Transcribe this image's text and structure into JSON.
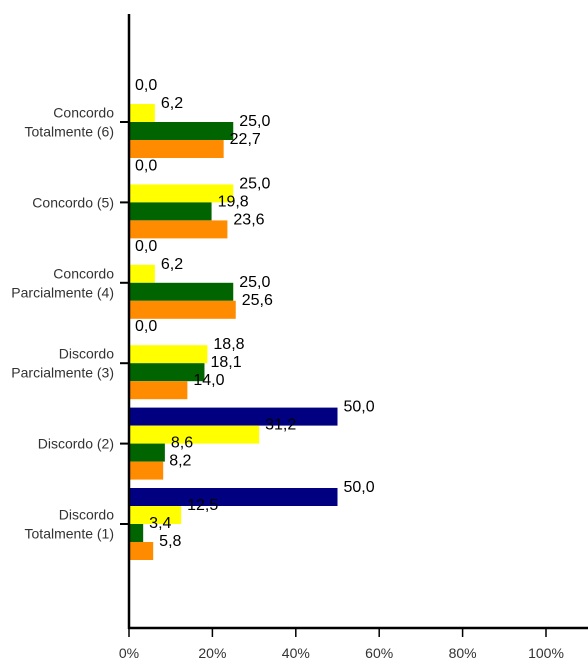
{
  "chart_data": {
    "type": "bar",
    "orientation": "horizontal",
    "x_ticks": [
      "0%",
      "20%",
      "40%",
      "60%",
      "80%",
      "100%"
    ],
    "xlim": [
      0,
      100
    ],
    "grid": false,
    "legend": "none",
    "categories": [
      [
        "Concordo",
        "Totalmente (6)"
      ],
      [
        "Concordo (5)"
      ],
      [
        "Concordo",
        "Parcialmente (4)"
      ],
      [
        "Discordo",
        "Parcialmente (3)"
      ],
      [
        "Discordo (2)"
      ],
      [
        "Discordo",
        "Totalmente (1)"
      ]
    ],
    "series": [
      {
        "color": "#000080",
        "values": [
          0.0,
          0.0,
          0.0,
          0.0,
          50.0,
          50.0
        ],
        "labels": [
          "0,0",
          "0,0",
          "0,0",
          "0,0",
          "50,0",
          "50,0"
        ]
      },
      {
        "color": "#FFFF00",
        "values": [
          6.2,
          25.0,
          6.2,
          18.8,
          31.2,
          12.5
        ],
        "labels": [
          "6,2",
          "25,0",
          "6,2",
          "18,8",
          "31,2",
          "12,5"
        ]
      },
      {
        "color": "#006400",
        "values": [
          25.0,
          19.8,
          25.0,
          18.1,
          8.6,
          3.4
        ],
        "labels": [
          "25,0",
          "19,8",
          "25,0",
          "18,1",
          "8,6",
          "3,4"
        ]
      },
      {
        "color": "#FF8C00",
        "values": [
          22.7,
          23.6,
          25.6,
          14.0,
          8.2,
          5.8
        ],
        "labels": [
          "22,7",
          "23,6",
          "25,6",
          "14,0",
          "8,2",
          "5,8"
        ]
      }
    ]
  }
}
